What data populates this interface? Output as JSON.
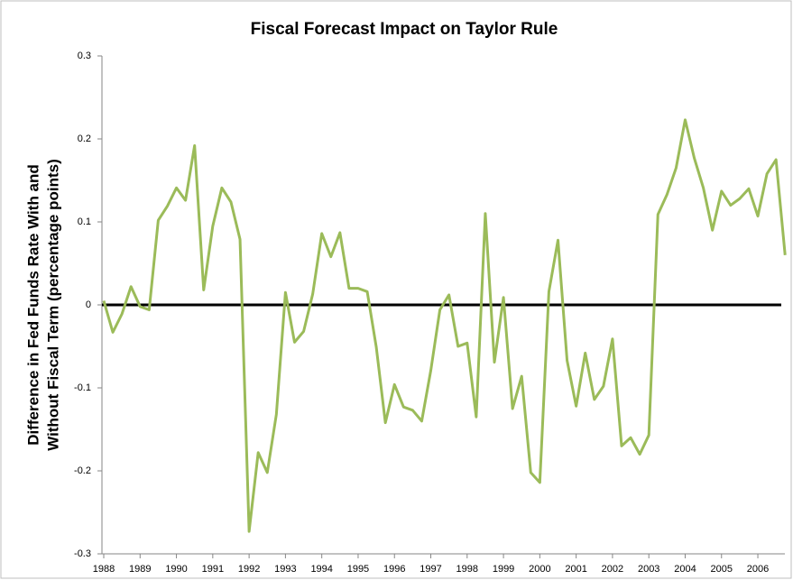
{
  "chart_data": {
    "type": "line",
    "title": "Fiscal Forecast Impact on Taylor Rule",
    "ylabel": [
      "Difference in Fed Funds Rate  With and",
      "Without Fiscal Term (percentage points)"
    ],
    "categories": [
      "1988",
      null,
      null,
      null,
      "1989",
      null,
      null,
      null,
      "1990",
      null,
      null,
      null,
      "1991",
      null,
      null,
      null,
      "1992",
      null,
      null,
      null,
      "1993",
      null,
      null,
      null,
      "1994",
      null,
      null,
      null,
      "1995",
      null,
      null,
      null,
      "1996",
      null,
      null,
      null,
      "1997",
      null,
      null,
      null,
      "1998",
      null,
      null,
      null,
      "1999",
      null,
      null,
      null,
      "2000",
      null,
      null,
      null,
      "2001",
      null,
      null,
      null,
      "2002",
      null,
      null,
      null,
      "2003",
      null,
      null,
      null,
      "2004",
      null,
      null,
      null,
      "2005",
      null,
      null,
      null,
      "2006",
      null,
      null,
      null
    ],
    "series": [
      {
        "color": "#9bbb59",
        "values": [
          0.005,
          -0.033,
          -0.011,
          0.022,
          -0.002,
          -0.006,
          0.102,
          0.119,
          0.141,
          0.126,
          0.192,
          0.018,
          0.095,
          0.141,
          0.124,
          0.079,
          -0.273,
          -0.178,
          -0.202,
          -0.132,
          0.015,
          -0.045,
          -0.032,
          0.013,
          0.086,
          0.058,
          0.087,
          0.02,
          0.02,
          0.016,
          -0.051,
          -0.142,
          -0.096,
          -0.123,
          -0.127,
          -0.14,
          -0.079,
          -0.006,
          0.012,
          -0.05,
          -0.046,
          -0.135,
          0.11,
          -0.069,
          0.009,
          -0.125,
          -0.086,
          -0.202,
          -0.214,
          0.016,
          0.078,
          -0.067,
          -0.122,
          -0.058,
          -0.114,
          -0.098,
          -0.041,
          -0.17,
          -0.16,
          -0.18,
          -0.157,
          0.109,
          0.133,
          0.165,
          0.223,
          0.177,
          0.141,
          0.09,
          0.137,
          0.12,
          0.128,
          0.14,
          0.107,
          0.158,
          0.175,
          0.06
        ]
      }
    ],
    "ylim": [
      -0.3,
      0.3
    ],
    "yticks": [
      -0.3,
      -0.2,
      -0.1,
      0,
      0.1,
      0.2,
      0.3
    ],
    "grid": false,
    "zero_line": true
  }
}
